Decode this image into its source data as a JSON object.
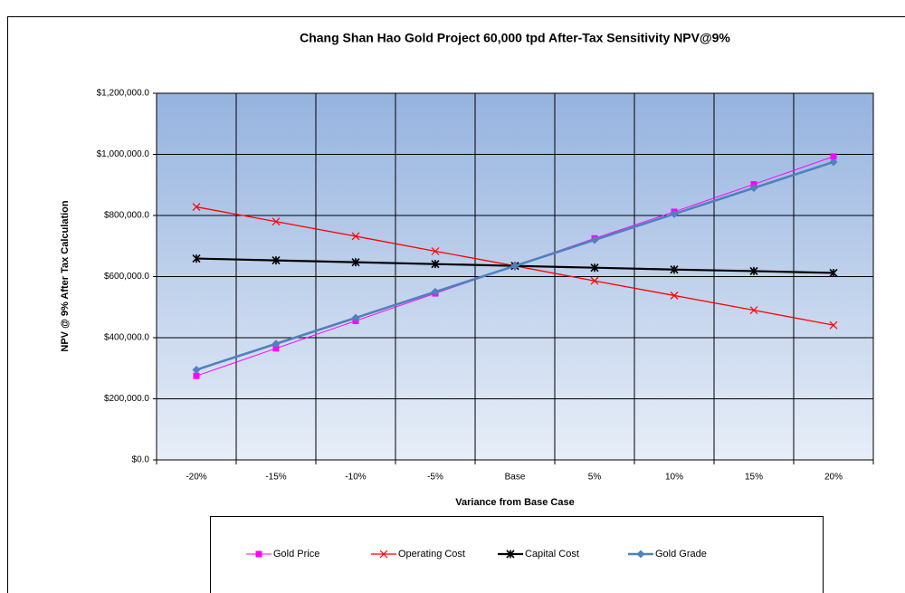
{
  "chart_data": {
    "type": "line",
    "title": "Chang Shan Hao Gold Project  60,000 tpd After-Tax Sensitivity NPV@9%",
    "x_label": "Variance from Base Case",
    "y_label": "NPV @  9% After Tax Calculation",
    "categories": [
      "-20%",
      "-15%",
      "-10%",
      "-5%",
      "Base",
      "5%",
      "10%",
      "15%",
      "20%"
    ],
    "ylim": [
      0,
      1200000
    ],
    "yticks": [
      {
        "value": 0,
        "label": "$0.0"
      },
      {
        "value": 200000,
        "label": "$200,000.0"
      },
      {
        "value": 400000,
        "label": "$400,000.0"
      },
      {
        "value": 600000,
        "label": "$600,000.0"
      },
      {
        "value": 800000,
        "label": "$800,000.0"
      },
      {
        "value": 1000000,
        "label": "$1,000,000.0"
      },
      {
        "value": 1200000,
        "label": "$1,200,000.0"
      }
    ],
    "grid": true,
    "legend": "bottom",
    "series": [
      {
        "name": "Gold Price",
        "color": "#ff00ff",
        "marker": "square",
        "values": [
          275000,
          365000,
          455000,
          545000,
          635000,
          725000,
          812000,
          902000,
          993000
        ]
      },
      {
        "name": "Operating Cost",
        "color": "#ff0000",
        "marker": "x",
        "values": [
          828000,
          780000,
          732000,
          683000,
          635000,
          586000,
          538000,
          490000,
          441000
        ]
      },
      {
        "name": "Capital Cost",
        "color": "#000000",
        "marker": "star",
        "values": [
          659000,
          653000,
          647000,
          641000,
          635000,
          629000,
          623000,
          618000,
          612000
        ]
      },
      {
        "name": "Gold Grade",
        "color": "#4f81bd",
        "marker": "diamond",
        "values": [
          295000,
          380000,
          465000,
          550000,
          635000,
          720000,
          805000,
          890000,
          975000
        ]
      }
    ]
  }
}
